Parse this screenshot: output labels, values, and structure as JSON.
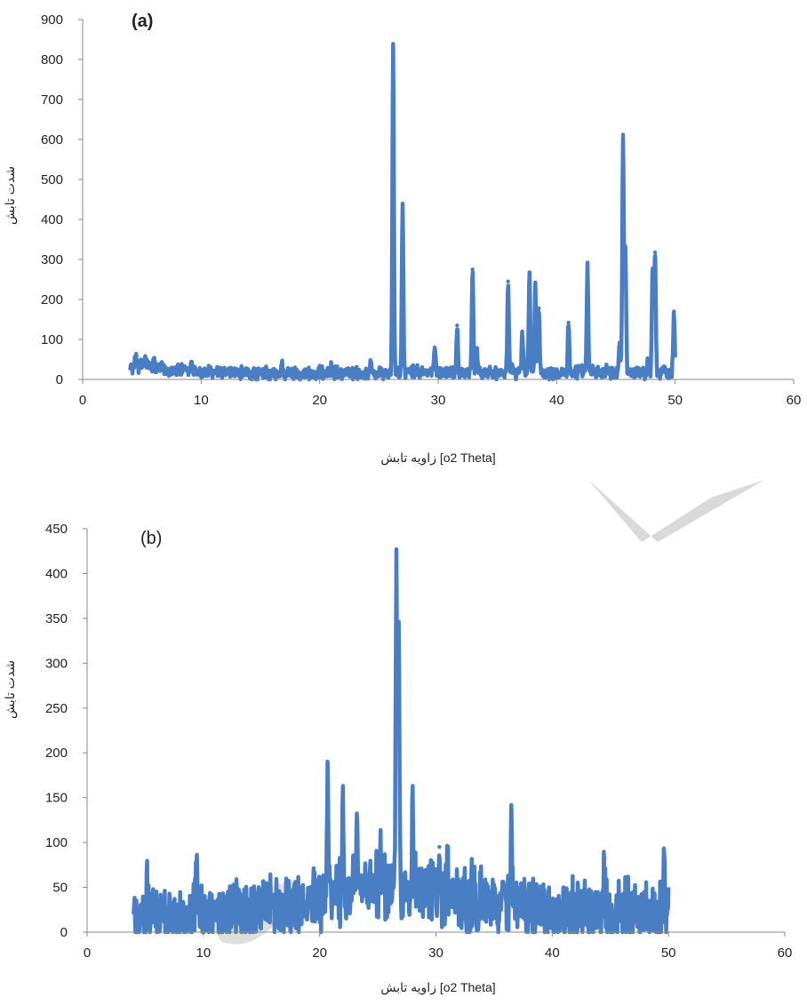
{
  "chart_data": [
    {
      "type": "line",
      "panel_label": "(a)",
      "panel_label_bold": true,
      "xlabel": "زاویه تابش [o2 Theta]",
      "ylabel": "شدت تابش",
      "xlim": [
        0,
        60
      ],
      "ylim": [
        0,
        900
      ],
      "xticks": [
        0,
        10,
        20,
        30,
        40,
        50,
        60
      ],
      "yticks": [
        0,
        100,
        200,
        300,
        400,
        500,
        600,
        700,
        800,
        900
      ],
      "grid": false,
      "legend": "none",
      "series_color": "#4a7ec4",
      "x_range": [
        4,
        50
      ],
      "baseline": {
        "x": [
          4,
          5,
          7,
          10,
          15,
          20,
          25,
          28,
          50
        ],
        "y": [
          30,
          35,
          25,
          18,
          14,
          14,
          15,
          18,
          18
        ]
      },
      "noise_amplitude": 14,
      "peaks": [
        {
          "x": 4.5,
          "y": 62
        },
        {
          "x": 5.3,
          "y": 55
        },
        {
          "x": 6.0,
          "y": 48
        },
        {
          "x": 9.2,
          "y": 44
        },
        {
          "x": 16.8,
          "y": 38
        },
        {
          "x": 21.0,
          "y": 33
        },
        {
          "x": 24.3,
          "y": 38
        },
        {
          "x": 26.2,
          "y": 830
        },
        {
          "x": 27.0,
          "y": 440
        },
        {
          "x": 29.7,
          "y": 80
        },
        {
          "x": 31.6,
          "y": 135
        },
        {
          "x": 32.9,
          "y": 275
        },
        {
          "x": 33.3,
          "y": 60
        },
        {
          "x": 35.9,
          "y": 245
        },
        {
          "x": 37.1,
          "y": 120
        },
        {
          "x": 37.7,
          "y": 268
        },
        {
          "x": 38.2,
          "y": 230
        },
        {
          "x": 38.5,
          "y": 178
        },
        {
          "x": 41.0,
          "y": 142
        },
        {
          "x": 42.6,
          "y": 278
        },
        {
          "x": 45.3,
          "y": 92
        },
        {
          "x": 45.6,
          "y": 612
        },
        {
          "x": 45.8,
          "y": 330
        },
        {
          "x": 47.7,
          "y": 45
        },
        {
          "x": 48.1,
          "y": 278
        },
        {
          "x": 48.3,
          "y": 318
        },
        {
          "x": 49.9,
          "y": 170
        }
      ]
    },
    {
      "type": "line",
      "panel_label": "(b)",
      "panel_label_bold": false,
      "xlabel": "زاویه تابش [o2 Theta]",
      "ylabel": "شدت تابش",
      "xlim": [
        0,
        60
      ],
      "ylim": [
        0,
        450
      ],
      "xticks": [
        0,
        10,
        20,
        30,
        40,
        50,
        60
      ],
      "yticks": [
        0,
        50,
        100,
        150,
        200,
        250,
        300,
        350,
        400,
        450
      ],
      "grid": false,
      "legend": "none",
      "series_color": "#4a7ec4",
      "x_range": [
        4,
        50
      ],
      "baseline": {
        "x": [
          4,
          10,
          18,
          22,
          26,
          30,
          36,
          42,
          50
        ],
        "y": [
          18,
          20,
          28,
          45,
          50,
          42,
          32,
          22,
          20
        ]
      },
      "noise_amplitude": 30,
      "peaks": [
        {
          "x": 5.2,
          "y": 56
        },
        {
          "x": 9.4,
          "y": 75
        },
        {
          "x": 15.1,
          "y": 56
        },
        {
          "x": 20.7,
          "y": 186
        },
        {
          "x": 22.0,
          "y": 133
        },
        {
          "x": 23.2,
          "y": 110
        },
        {
          "x": 25.2,
          "y": 95
        },
        {
          "x": 26.6,
          "y": 406
        },
        {
          "x": 26.8,
          "y": 340
        },
        {
          "x": 28.0,
          "y": 130
        },
        {
          "x": 30.3,
          "y": 95
        },
        {
          "x": 31.0,
          "y": 90
        },
        {
          "x": 36.5,
          "y": 124
        },
        {
          "x": 44.5,
          "y": 83
        },
        {
          "x": 49.6,
          "y": 88
        }
      ]
    }
  ],
  "watermark": {
    "text": "ctr ...",
    "color": "#c8c8c8"
  }
}
